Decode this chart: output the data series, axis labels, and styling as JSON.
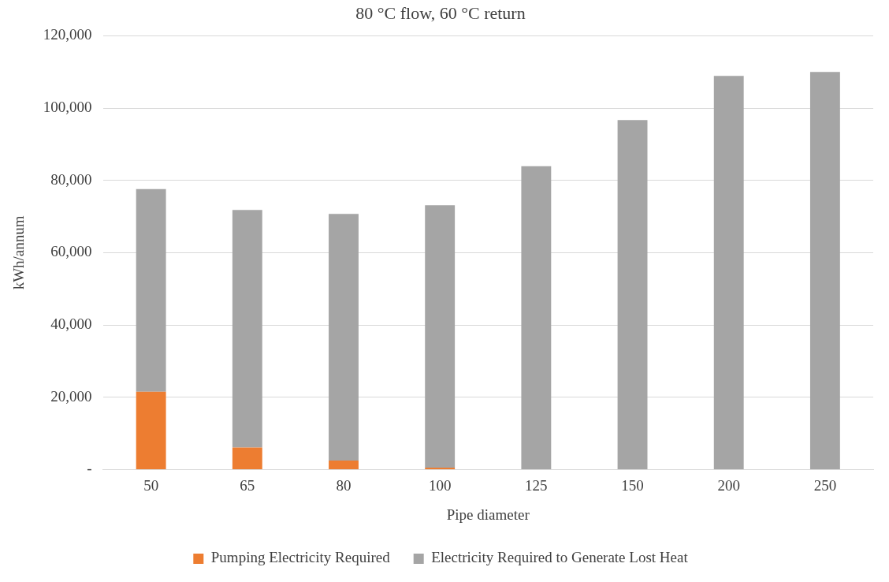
{
  "chart_data": {
    "type": "bar",
    "title": "80 °C flow, 60 °C return",
    "xlabel": "Pipe diameter",
    "ylabel": "kWh/annum",
    "categories": [
      "50",
      "65",
      "80",
      "100",
      "125",
      "150",
      "200",
      "250"
    ],
    "stacked": true,
    "series": [
      {
        "name": "Pumping Electricity Required",
        "color": "#ed7d31",
        "values": [
          21500,
          6100,
          2500,
          500,
          0,
          0,
          0,
          0
        ]
      },
      {
        "name": "Electricity Required to Generate Lost Heat",
        "color": "#a5a5a5",
        "values": [
          56100,
          65700,
          68200,
          72600,
          83900,
          96700,
          108900,
          110000
        ]
      }
    ],
    "ylim": [
      0,
      120000
    ],
    "yticks": [
      {
        "value": 0,
        "label": "-"
      },
      {
        "value": 20000,
        "label": "20,000"
      },
      {
        "value": 40000,
        "label": "40,000"
      },
      {
        "value": 60000,
        "label": "60,000"
      },
      {
        "value": 80000,
        "label": "80,000"
      },
      {
        "value": 100000,
        "label": "100,000"
      },
      {
        "value": 120000,
        "label": "120,000"
      }
    ],
    "grid": "y",
    "legend": "bottom"
  }
}
